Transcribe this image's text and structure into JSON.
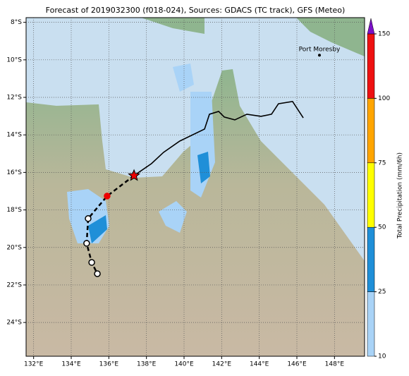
{
  "map": {
    "title": "Forecast of 2019032300 (f018-024), Sources: GDACS (TC track), GFS (Meteo)",
    "xlim": [
      131.6,
      149.6
    ],
    "ylim": [
      -25.8,
      -7.75
    ],
    "xticks": [
      {
        "value": 132,
        "label": "132°E"
      },
      {
        "value": 134,
        "label": "134°E"
      },
      {
        "value": 136,
        "label": "136°E"
      },
      {
        "value": 138,
        "label": "138°E"
      },
      {
        "value": 140,
        "label": "140°E"
      },
      {
        "value": 142,
        "label": "142°E"
      },
      {
        "value": 144,
        "label": "144°E"
      },
      {
        "value": 146,
        "label": "146°E"
      },
      {
        "value": 148,
        "label": "148°E"
      }
    ],
    "yticks": [
      {
        "value": -8,
        "label": "8°S"
      },
      {
        "value": -10,
        "label": "10°S"
      },
      {
        "value": -12,
        "label": "12°S"
      },
      {
        "value": -14,
        "label": "14°S"
      },
      {
        "value": -16,
        "label": "16°S"
      },
      {
        "value": -18,
        "label": "18°S"
      },
      {
        "value": -20,
        "label": "20°S"
      },
      {
        "value": -22,
        "label": "22°S"
      },
      {
        "value": -24,
        "label": "24°S"
      }
    ],
    "grid": true,
    "place": {
      "name": "Port Moresby",
      "lon": 147.2,
      "lat": -9.45
    },
    "observed_track": {
      "color": "#000000",
      "lon": [
        137.34,
        138.27,
        138.91,
        139.77,
        141.09,
        141.35,
        141.84,
        142.14,
        142.7,
        143.34,
        144.09,
        144.65,
        145.02,
        145.77,
        146.34
      ],
      "lat": [
        -16.17,
        -15.53,
        -14.93,
        -14.33,
        -13.69,
        -12.9,
        -12.75,
        -13.05,
        -13.2,
        -12.9,
        -13.01,
        -12.9,
        -12.34,
        -12.22,
        -13.09
      ]
    },
    "forecast_track": {
      "color": "#000000",
      "lon": [
        137.34,
        135.91,
        134.9,
        134.82,
        135.09,
        135.39
      ],
      "lat": [
        -16.17,
        -17.26,
        -18.46,
        -19.78,
        -20.8,
        -21.4
      ]
    },
    "colorbar": {
      "label": "Total Precipitation (mm/6h)",
      "ticks": [
        10,
        25,
        50,
        75,
        100,
        150
      ],
      "colors": [
        "#a9d3f7",
        "#1f8fd8",
        "#ffff00",
        "#ffa500",
        "#ee1111"
      ],
      "extend_color": "#7b10c8"
    }
  }
}
